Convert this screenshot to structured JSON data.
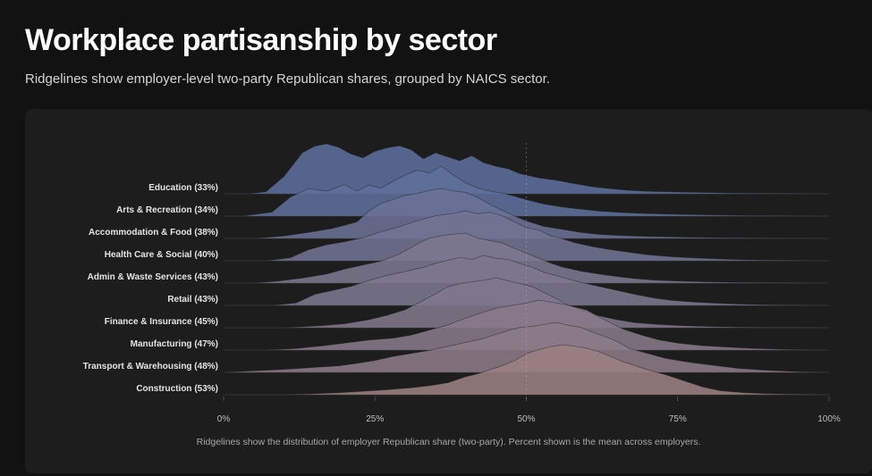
{
  "title": "Workplace partisanship by sector",
  "subtitle": "Ridgelines show employer-level two-party Republican shares, grouped by NAICS sector.",
  "caption": "Ridgelines show the distribution of employer Republican share (two-party). Percent shown is the mean across employers.",
  "colors": {
    "low": "#5c6e9c",
    "high": "#9c7f82",
    "background": "#1d1d1d"
  },
  "chart_data": {
    "type": "ridgeline",
    "x_range": [
      0,
      100
    ],
    "x_ticks": [
      0,
      25,
      50,
      75,
      100
    ],
    "x_tick_labels": [
      "0%",
      "25%",
      "50%",
      "75%",
      "100%"
    ],
    "reference_line": 50,
    "grid": false,
    "series": [
      {
        "name": "Education",
        "mean": 33,
        "label": "Education (33%)",
        "x": [
          4,
          7,
          10,
          13,
          15,
          17,
          19,
          21,
          23,
          25,
          27,
          29,
          31,
          33,
          35,
          37,
          39,
          41,
          43,
          45,
          47,
          49,
          52,
          55,
          58,
          61,
          64,
          67,
          70,
          75,
          80,
          85,
          90,
          95,
          100
        ],
        "y": [
          0.0,
          0.04,
          0.35,
          0.82,
          0.95,
          1.0,
          0.93,
          0.8,
          0.72,
          0.85,
          0.92,
          0.96,
          0.88,
          0.7,
          0.82,
          0.74,
          0.66,
          0.76,
          0.62,
          0.55,
          0.5,
          0.4,
          0.32,
          0.27,
          0.2,
          0.14,
          0.1,
          0.07,
          0.05,
          0.035,
          0.025,
          0.015,
          0.01,
          0.005,
          0.0
        ]
      },
      {
        "name": "Arts & Recreation",
        "mean": 34,
        "label": "Arts & Recreation (34%)",
        "x": [
          3,
          8,
          11,
          14,
          17,
          20,
          22,
          24,
          26,
          28,
          30,
          32,
          34,
          36,
          38,
          40,
          42,
          44,
          46,
          48,
          50,
          53,
          56,
          59,
          62,
          66,
          70,
          75,
          80,
          85,
          90,
          95,
          100
        ],
        "y": [
          0.0,
          0.08,
          0.38,
          0.55,
          0.5,
          0.63,
          0.5,
          0.62,
          0.56,
          0.7,
          0.82,
          0.92,
          0.86,
          1.0,
          0.82,
          0.66,
          0.56,
          0.5,
          0.46,
          0.4,
          0.33,
          0.24,
          0.18,
          0.14,
          0.1,
          0.07,
          0.05,
          0.035,
          0.025,
          0.015,
          0.01,
          0.005,
          0.0
        ]
      },
      {
        "name": "Accommodation & Food",
        "mean": 38,
        "label": "Accommodation & Food (38%)",
        "x": [
          5,
          10,
          14,
          18,
          22,
          24,
          26,
          28,
          30,
          32,
          34,
          36,
          38,
          40,
          42,
          44,
          46,
          48,
          50,
          53,
          56,
          59,
          62,
          66,
          70,
          75,
          80,
          85,
          90,
          95,
          100
        ],
        "y": [
          0.0,
          0.05,
          0.12,
          0.2,
          0.33,
          0.55,
          0.7,
          0.78,
          0.86,
          0.9,
          0.96,
          1.0,
          0.95,
          0.92,
          0.82,
          0.68,
          0.56,
          0.45,
          0.35,
          0.24,
          0.18,
          0.12,
          0.08,
          0.055,
          0.04,
          0.028,
          0.018,
          0.012,
          0.008,
          0.004,
          0.0
        ]
      },
      {
        "name": "Health Care & Social",
        "mean": 40,
        "label": "Health Care & Social (40%)",
        "x": [
          7,
          11,
          14,
          17,
          20,
          23,
          26,
          29,
          32,
          35,
          38,
          40,
          42,
          44,
          46,
          48,
          50,
          52,
          54,
          56,
          58,
          61,
          64,
          67,
          70,
          74,
          78,
          82,
          86,
          90,
          95,
          100
        ],
        "y": [
          0.0,
          0.06,
          0.22,
          0.32,
          0.38,
          0.46,
          0.58,
          0.68,
          0.8,
          0.9,
          0.95,
          1.0,
          0.94,
          0.97,
          0.9,
          0.78,
          0.66,
          0.62,
          0.5,
          0.44,
          0.36,
          0.28,
          0.22,
          0.17,
          0.12,
          0.08,
          0.055,
          0.035,
          0.02,
          0.012,
          0.005,
          0.0
        ]
      },
      {
        "name": "Admin & Waste Services",
        "mean": 43,
        "label": "Admin & Waste Services (43%)",
        "x": [
          5,
          9,
          13,
          17,
          20,
          23,
          26,
          29,
          32,
          34,
          36,
          38,
          40,
          42,
          44,
          46,
          48,
          50,
          52,
          54,
          56,
          59,
          62,
          65,
          68,
          71,
          75,
          80,
          85,
          90,
          95,
          100
        ],
        "y": [
          0.0,
          0.04,
          0.1,
          0.18,
          0.28,
          0.36,
          0.44,
          0.58,
          0.78,
          0.9,
          0.95,
          0.98,
          1.0,
          0.9,
          0.85,
          0.8,
          0.7,
          0.6,
          0.5,
          0.4,
          0.32,
          0.24,
          0.18,
          0.13,
          0.09,
          0.06,
          0.04,
          0.025,
          0.015,
          0.01,
          0.005,
          0.0
        ]
      },
      {
        "name": "Retail",
        "mean": 43,
        "label": "Retail (43%)",
        "x": [
          8,
          12,
          15,
          18,
          21,
          24,
          27,
          30,
          33,
          35,
          37,
          39,
          41,
          43,
          45,
          47,
          49,
          51,
          53,
          56,
          59,
          62,
          65,
          68,
          71,
          74,
          78,
          82,
          86,
          90,
          95,
          100
        ],
        "y": [
          0.0,
          0.05,
          0.22,
          0.3,
          0.38,
          0.5,
          0.6,
          0.68,
          0.76,
          0.84,
          0.9,
          0.96,
          0.92,
          1.0,
          0.94,
          0.92,
          0.84,
          0.76,
          0.66,
          0.56,
          0.46,
          0.38,
          0.3,
          0.22,
          0.15,
          0.1,
          0.065,
          0.04,
          0.025,
          0.015,
          0.006,
          0.0
        ]
      },
      {
        "name": "Finance & Insurance",
        "mean": 45,
        "label": "Finance & Insurance (45%)",
        "x": [
          10,
          16,
          20,
          24,
          27,
          30,
          33,
          35,
          37,
          39,
          41,
          43,
          45,
          47,
          49,
          51,
          53,
          55,
          57,
          59,
          62,
          65,
          68,
          72,
          76,
          80,
          85,
          90,
          95,
          100
        ],
        "y": [
          0.0,
          0.04,
          0.08,
          0.16,
          0.25,
          0.36,
          0.55,
          0.68,
          0.82,
          0.88,
          0.92,
          0.95,
          1.0,
          0.94,
          0.88,
          0.82,
          0.7,
          0.58,
          0.45,
          0.35,
          0.24,
          0.16,
          0.1,
          0.065,
          0.04,
          0.025,
          0.015,
          0.008,
          0.004,
          0.0
        ]
      },
      {
        "name": "Manufacturing",
        "mean": 47,
        "label": "Manufacturing (47%)",
        "x": [
          7,
          12,
          16,
          20,
          24,
          28,
          31,
          34,
          37,
          40,
          42,
          44,
          46,
          48,
          50,
          52,
          54,
          56,
          58,
          60,
          62,
          64,
          66,
          69,
          72,
          75,
          79,
          83,
          87,
          91,
          95,
          100
        ],
        "y": [
          0.0,
          0.03,
          0.08,
          0.14,
          0.2,
          0.24,
          0.3,
          0.4,
          0.5,
          0.64,
          0.72,
          0.8,
          0.86,
          0.9,
          0.94,
          1.0,
          0.96,
          0.92,
          0.86,
          0.8,
          0.66,
          0.54,
          0.42,
          0.3,
          0.2,
          0.14,
          0.09,
          0.06,
          0.035,
          0.02,
          0.008,
          0.0
        ]
      },
      {
        "name": "Transport & Warehousing",
        "mean": 48,
        "label": "Transport & Warehousing (48%)",
        "x": [
          0,
          5,
          10,
          15,
          19,
          22,
          25,
          28,
          31,
          34,
          37,
          40,
          43,
          45,
          47,
          49,
          51,
          53,
          55,
          57,
          59,
          61,
          63,
          65,
          67,
          70,
          73,
          77,
          81,
          85,
          90,
          95,
          100
        ],
        "y": [
          0.0,
          0.03,
          0.06,
          0.1,
          0.13,
          0.18,
          0.24,
          0.32,
          0.38,
          0.44,
          0.52,
          0.6,
          0.68,
          0.76,
          0.84,
          0.9,
          0.92,
          0.96,
          1.0,
          0.94,
          0.9,
          0.8,
          0.72,
          0.62,
          0.48,
          0.38,
          0.28,
          0.2,
          0.14,
          0.08,
          0.04,
          0.015,
          0.0
        ]
      },
      {
        "name": "Construction",
        "mean": 53,
        "label": "Construction (53%)",
        "x": [
          10,
          15,
          19,
          23,
          27,
          31,
          34,
          37,
          40,
          42,
          44,
          46,
          48,
          50,
          52,
          54,
          56,
          58,
          60,
          62,
          64,
          66,
          68,
          70,
          73,
          76,
          79,
          82,
          86,
          90,
          95,
          100
        ],
        "y": [
          0.0,
          0.02,
          0.04,
          0.07,
          0.1,
          0.14,
          0.18,
          0.24,
          0.36,
          0.42,
          0.5,
          0.58,
          0.68,
          0.82,
          0.9,
          0.96,
          1.0,
          0.97,
          0.93,
          0.86,
          0.76,
          0.66,
          0.58,
          0.5,
          0.4,
          0.28,
          0.16,
          0.08,
          0.04,
          0.02,
          0.01,
          0.0
        ]
      }
    ]
  }
}
